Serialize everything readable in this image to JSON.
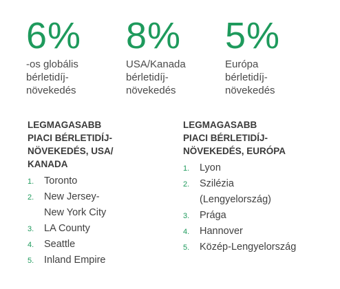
{
  "stats": [
    {
      "value": "6%",
      "label": "-os globális\nbérletidíj-\nnövekedés"
    },
    {
      "value": "8%",
      "label": "USA/Kanada\nbérletidíj-\nnövekedés"
    },
    {
      "value": "5%",
      "label": "Európa\nbérletidíj-\nnövekedés"
    }
  ],
  "lists": [
    {
      "title": "LEGMAGASABB\nPIACI BÉRLETIDÍJ-\nNÖVEKEDÉS, USA/\nKANADA",
      "items": [
        {
          "num": "1.",
          "text": "Toronto"
        },
        {
          "num": "2.",
          "text": "New Jersey-\nNew York City"
        },
        {
          "num": "3.",
          "text": "LA County"
        },
        {
          "num": "4.",
          "text": "Seattle"
        },
        {
          "num": "5.",
          "text": "Inland Empire"
        }
      ]
    },
    {
      "title": "LEGMAGASABB\nPIACI BÉRLETIDÍJ-\nNÖVEKEDÉS, EURÓPA",
      "items": [
        {
          "num": "1.",
          "text": "Lyon"
        },
        {
          "num": "2.",
          "text": "Szilézia\n(Lengyelország)"
        },
        {
          "num": "3.",
          "text": "Prága"
        },
        {
          "num": "4.",
          "text": "Hannover"
        },
        {
          "num": "5.",
          "text": "Közép-Lengyelország"
        }
      ]
    }
  ]
}
